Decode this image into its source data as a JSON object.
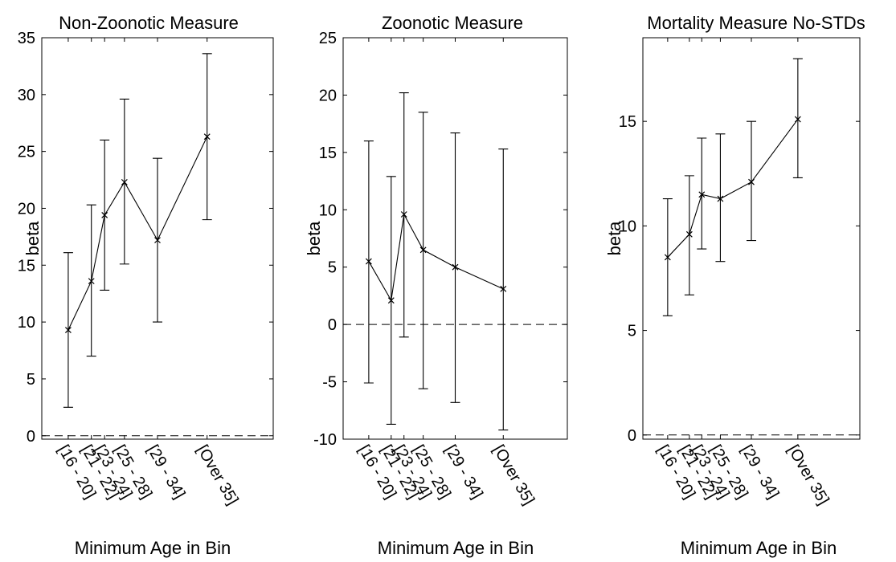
{
  "chart_data": [
    {
      "type": "line",
      "title": "Non-Zoonotic Measure",
      "xlabel": "Minimum Age in Bin",
      "ylabel": "beta",
      "categories": [
        "[16 - 20]",
        "[21 - 22]",
        "[23 - 24]",
        "[25 - 28]",
        "[29 - 34]",
        "[Over 35]"
      ],
      "x": [
        18,
        21.5,
        23.5,
        26.5,
        31.5,
        39
      ],
      "y": [
        9.3,
        13.6,
        19.4,
        22.3,
        17.2,
        26.3
      ],
      "err_low": [
        2.5,
        7.0,
        12.8,
        15.1,
        10.0,
        19.0
      ],
      "err_high": [
        16.1,
        20.3,
        26.0,
        29.6,
        24.4,
        33.6
      ],
      "xlim": [
        14,
        49
      ],
      "ylim": [
        -0.3,
        35
      ],
      "yticks": [
        0,
        5,
        10,
        15,
        20,
        25,
        30,
        35
      ],
      "ytick_labels": [
        "0",
        "5",
        "10",
        "15",
        "20",
        "25",
        "30",
        "35"
      ],
      "zero_line": true,
      "grid": false
    },
    {
      "type": "line",
      "title": "Zoonotic Measure",
      "xlabel": "Minimum Age in Bin",
      "ylabel": "beta",
      "categories": [
        "[16 - 20]",
        "[21 - 22]",
        "[23 - 24]",
        "[25 - 28]",
        "[29 - 34]",
        "[Over 35]"
      ],
      "x": [
        18,
        21.5,
        23.5,
        26.5,
        31.5,
        39
      ],
      "y": [
        5.5,
        2.1,
        9.6,
        6.5,
        5.0,
        3.1
      ],
      "err_low": [
        -5.1,
        -8.7,
        -1.1,
        -5.6,
        -6.8,
        -9.2
      ],
      "err_high": [
        16.0,
        12.9,
        20.2,
        18.5,
        16.7,
        15.3
      ],
      "xlim": [
        14,
        49
      ],
      "ylim": [
        -10,
        25
      ],
      "yticks": [
        -10,
        -5,
        0,
        5,
        10,
        15,
        20,
        25
      ],
      "ytick_labels": [
        "-10",
        "-5",
        "0",
        "5",
        "10",
        "15",
        "20",
        "25"
      ],
      "zero_line": true,
      "grid": false
    },
    {
      "type": "line",
      "title": "Mortality Measure No-STDs",
      "xlabel": "Minimum Age in Bin",
      "ylabel": "beta",
      "categories": [
        "[16 - 20]",
        "[21 - 22]",
        "[23 - 24]",
        "[25 - 28]",
        "[29 - 34]",
        "[Over 35]"
      ],
      "x": [
        18,
        21.5,
        23.5,
        26.5,
        31.5,
        39
      ],
      "y": [
        8.5,
        9.6,
        11.5,
        11.3,
        12.1,
        15.1
      ],
      "err_low": [
        5.7,
        6.7,
        8.9,
        8.3,
        9.3,
        12.3
      ],
      "err_high": [
        11.3,
        12.4,
        14.2,
        14.4,
        15.0,
        18.0
      ],
      "xlim": [
        14,
        49
      ],
      "ylim": [
        -0.2,
        19
      ],
      "yticks": [
        0,
        5,
        10,
        15
      ],
      "ytick_labels": [
        "0",
        "5",
        "10",
        "15"
      ],
      "zero_line": true,
      "grid": false
    }
  ]
}
